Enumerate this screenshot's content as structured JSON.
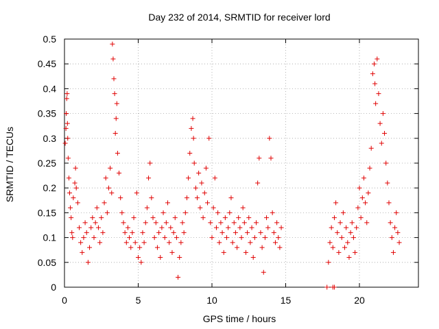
{
  "chart_data": {
    "type": "scatter",
    "title": "Day 232 of 2014, SRMTID for receiver lord",
    "xlabel": "GPS time / hours",
    "ylabel": "SRMTID / TECUs",
    "xlim": [
      0,
      24
    ],
    "ylim": [
      0,
      0.5
    ],
    "xticks": [
      "0",
      "5",
      "10",
      "15",
      "20"
    ],
    "yticks": [
      "0",
      "0.05",
      "0.1",
      "0.15",
      "0.2",
      "0.25",
      "0.3",
      "0.35",
      "0.4",
      "0.45",
      "0.5"
    ],
    "grid": true,
    "marker": "plus",
    "color": "#e00000",
    "series": [
      {
        "points": [
          [
            0.05,
            0.29
          ],
          [
            0.1,
            0.32
          ],
          [
            0.12,
            0.35
          ],
          [
            0.15,
            0.38
          ],
          [
            0.18,
            0.39
          ],
          [
            0.2,
            0.33
          ],
          [
            0.22,
            0.3
          ],
          [
            0.25,
            0.26
          ],
          [
            0.3,
            0.22
          ],
          [
            0.35,
            0.19
          ],
          [
            0.4,
            0.16
          ],
          [
            0.45,
            0.14
          ],
          [
            0.5,
            0.11
          ],
          [
            0.55,
            0.1
          ],
          [
            0.6,
            0.18
          ],
          [
            0.7,
            0.21
          ],
          [
            0.75,
            0.24
          ],
          [
            0.8,
            0.2
          ],
          [
            0.9,
            0.17
          ],
          [
            1.0,
            0.12
          ],
          [
            1.1,
            0.09
          ],
          [
            1.2,
            0.07
          ],
          [
            1.3,
            0.1
          ],
          [
            1.4,
            0.13
          ],
          [
            1.5,
            0.11
          ],
          [
            1.6,
            0.05
          ],
          [
            1.7,
            0.08
          ],
          [
            1.8,
            0.12
          ],
          [
            1.9,
            0.14
          ],
          [
            2.0,
            0.1
          ],
          [
            2.1,
            0.13
          ],
          [
            2.2,
            0.16
          ],
          [
            2.3,
            0.12
          ],
          [
            2.4,
            0.09
          ],
          [
            2.5,
            0.14
          ],
          [
            2.6,
            0.11
          ],
          [
            2.7,
            0.17
          ],
          [
            2.8,
            0.22
          ],
          [
            2.9,
            0.15
          ],
          [
            3.0,
            0.2
          ],
          [
            3.1,
            0.24
          ],
          [
            3.2,
            0.19
          ],
          [
            3.25,
            0.49
          ],
          [
            3.3,
            0.46
          ],
          [
            3.35,
            0.42
          ],
          [
            3.4,
            0.39
          ],
          [
            3.45,
            0.31
          ],
          [
            3.5,
            0.34
          ],
          [
            3.55,
            0.37
          ],
          [
            3.6,
            0.27
          ],
          [
            3.7,
            0.23
          ],
          [
            3.8,
            0.18
          ],
          [
            3.9,
            0.15
          ],
          [
            4.0,
            0.13
          ],
          [
            4.1,
            0.11
          ],
          [
            4.2,
            0.09
          ],
          [
            4.3,
            0.12
          ],
          [
            4.4,
            0.1
          ],
          [
            4.5,
            0.08
          ],
          [
            4.6,
            0.11
          ],
          [
            4.7,
            0.14
          ],
          [
            4.8,
            0.09
          ],
          [
            4.9,
            0.19
          ],
          [
            5.0,
            0.06
          ],
          [
            5.1,
            0.08
          ],
          [
            5.2,
            0.05
          ],
          [
            5.3,
            0.11
          ],
          [
            5.4,
            0.09
          ],
          [
            5.5,
            0.13
          ],
          [
            5.6,
            0.16
          ],
          [
            5.7,
            0.22
          ],
          [
            5.8,
            0.25
          ],
          [
            5.9,
            0.18
          ],
          [
            6.0,
            0.14
          ],
          [
            6.1,
            0.1
          ],
          [
            6.2,
            0.13
          ],
          [
            6.3,
            0.08
          ],
          [
            6.4,
            0.11
          ],
          [
            6.5,
            0.06
          ],
          [
            6.6,
            0.12
          ],
          [
            6.7,
            0.15
          ],
          [
            6.8,
            0.1
          ],
          [
            6.9,
            0.13
          ],
          [
            7.0,
            0.17
          ],
          [
            7.1,
            0.09
          ],
          [
            7.2,
            0.12
          ],
          [
            7.3,
            0.07
          ],
          [
            7.4,
            0.11
          ],
          [
            7.5,
            0.14
          ],
          [
            7.6,
            0.1
          ],
          [
            7.7,
            0.02
          ],
          [
            7.8,
            0.06
          ],
          [
            7.9,
            0.09
          ],
          [
            8.0,
            0.13
          ],
          [
            8.1,
            0.11
          ],
          [
            8.2,
            0.15
          ],
          [
            8.3,
            0.18
          ],
          [
            8.4,
            0.22
          ],
          [
            8.5,
            0.27
          ],
          [
            8.6,
            0.32
          ],
          [
            8.7,
            0.34
          ],
          [
            8.75,
            0.3
          ],
          [
            8.8,
            0.25
          ],
          [
            8.9,
            0.2
          ],
          [
            9.0,
            0.18
          ],
          [
            9.1,
            0.23
          ],
          [
            9.2,
            0.16
          ],
          [
            9.3,
            0.21
          ],
          [
            9.4,
            0.14
          ],
          [
            9.5,
            0.19
          ],
          [
            9.6,
            0.24
          ],
          [
            9.7,
            0.17
          ],
          [
            9.8,
            0.3
          ],
          [
            9.9,
            0.13
          ],
          [
            10.0,
            0.1
          ],
          [
            10.1,
            0.16
          ],
          [
            10.2,
            0.22
          ],
          [
            10.3,
            0.12
          ],
          [
            10.4,
            0.15
          ],
          [
            10.5,
            0.09
          ],
          [
            10.6,
            0.13
          ],
          [
            10.7,
            0.11
          ],
          [
            10.8,
            0.07
          ],
          [
            10.9,
            0.14
          ],
          [
            11.0,
            0.1
          ],
          [
            11.1,
            0.12
          ],
          [
            11.2,
            0.15
          ],
          [
            11.3,
            0.18
          ],
          [
            11.4,
            0.09
          ],
          [
            11.5,
            0.13
          ],
          [
            11.6,
            0.11
          ],
          [
            11.7,
            0.08
          ],
          [
            11.8,
            0.14
          ],
          [
            11.9,
            0.12
          ],
          [
            12.0,
            0.1
          ],
          [
            12.1,
            0.16
          ],
          [
            12.2,
            0.13
          ],
          [
            12.3,
            0.07
          ],
          [
            12.4,
            0.11
          ],
          [
            12.5,
            0.14
          ],
          [
            12.6,
            0.09
          ],
          [
            12.7,
            0.12
          ],
          [
            12.8,
            0.06
          ],
          [
            12.9,
            0.1
          ],
          [
            13.0,
            0.13
          ],
          [
            13.1,
            0.21
          ],
          [
            13.2,
            0.26
          ],
          [
            13.3,
            0.11
          ],
          [
            13.4,
            0.08
          ],
          [
            13.5,
            0.03
          ],
          [
            13.6,
            0.1
          ],
          [
            13.7,
            0.14
          ],
          [
            13.8,
            0.12
          ],
          [
            13.9,
            0.3
          ],
          [
            14.0,
            0.26
          ],
          [
            14.1,
            0.15
          ],
          [
            14.2,
            0.11
          ],
          [
            14.3,
            0.09
          ],
          [
            14.4,
            0.13
          ],
          [
            14.5,
            0.1
          ],
          [
            14.6,
            0.08
          ],
          [
            14.7,
            0.12
          ],
          [
            17.8,
            0.0
          ],
          [
            18.2,
            0.0
          ],
          [
            18.3,
            0.0
          ],
          [
            17.9,
            0.05
          ],
          [
            18.0,
            0.09
          ],
          [
            18.1,
            0.12
          ],
          [
            18.2,
            0.08
          ],
          [
            18.3,
            0.14
          ],
          [
            18.4,
            0.17
          ],
          [
            18.5,
            0.11
          ],
          [
            18.6,
            0.07
          ],
          [
            18.7,
            0.13
          ],
          [
            18.8,
            0.1
          ],
          [
            18.9,
            0.15
          ],
          [
            19.0,
            0.08
          ],
          [
            19.1,
            0.12
          ],
          [
            19.2,
            0.09
          ],
          [
            19.3,
            0.06
          ],
          [
            19.4,
            0.11
          ],
          [
            19.5,
            0.13
          ],
          [
            19.6,
            0.1
          ],
          [
            19.7,
            0.07
          ],
          [
            19.8,
            0.12
          ],
          [
            19.9,
            0.16
          ],
          [
            20.0,
            0.2
          ],
          [
            20.1,
            0.14
          ],
          [
            20.2,
            0.18
          ],
          [
            20.3,
            0.22
          ],
          [
            20.4,
            0.17
          ],
          [
            20.5,
            0.13
          ],
          [
            20.6,
            0.19
          ],
          [
            20.7,
            0.24
          ],
          [
            20.8,
            0.28
          ],
          [
            20.9,
            0.43
          ],
          [
            21.0,
            0.45
          ],
          [
            21.05,
            0.41
          ],
          [
            21.1,
            0.37
          ],
          [
            21.2,
            0.46
          ],
          [
            21.3,
            0.39
          ],
          [
            21.4,
            0.33
          ],
          [
            21.5,
            0.29
          ],
          [
            21.6,
            0.35
          ],
          [
            21.7,
            0.31
          ],
          [
            21.8,
            0.25
          ],
          [
            21.9,
            0.21
          ],
          [
            22.0,
            0.17
          ],
          [
            22.1,
            0.13
          ],
          [
            22.2,
            0.1
          ],
          [
            22.3,
            0.07
          ],
          [
            22.4,
            0.12
          ],
          [
            22.5,
            0.15
          ],
          [
            22.6,
            0.11
          ],
          [
            22.7,
            0.09
          ]
        ]
      }
    ]
  }
}
